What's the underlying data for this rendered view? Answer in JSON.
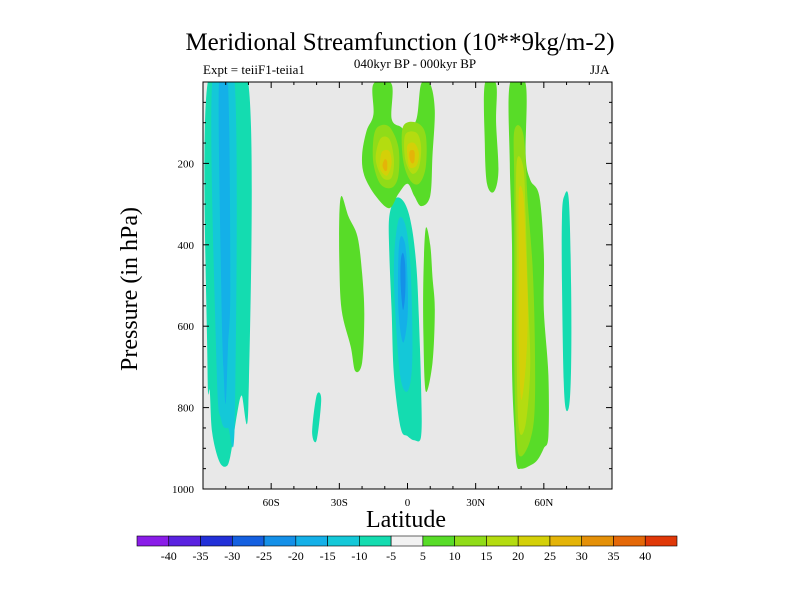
{
  "colors": {
    "background": "#e8e8e8",
    "levels": {
      "-40": "#8a1de8",
      "-35": "#5a22e0",
      "-30": "#2230d8",
      "-25": "#1460e0",
      "-20": "#1490e8",
      "-15": "#14b0e8",
      "-10": "#14c8d8",
      "-5": "#14dcb0",
      "5": "#58dc28",
      "10": "#90dc18",
      "15": "#b4dc10",
      "20": "#d4d008",
      "25": "#e4b408",
      "30": "#e49008",
      "35": "#e46808",
      "40": "#e03808"
    }
  },
  "chart_data": {
    "type": "contour-filled",
    "title": "Meridional Streamfunction (10**9kg/m-2)",
    "left_string": "Expt = teiiF1-teiia1",
    "center_string": "040kyr BP - 000kyr BP",
    "right_string": "JJA",
    "xlabel": "Latitude",
    "ylabel": "Pressure (in hPa)",
    "xlim": [
      -90,
      90
    ],
    "ylim": [
      1000,
      0
    ],
    "x_ticks": [
      {
        "value": -60,
        "label": "60S"
      },
      {
        "value": -30,
        "label": "30S"
      },
      {
        "value": 0,
        "label": "0"
      },
      {
        "value": 30,
        "label": "30N"
      },
      {
        "value": 60,
        "label": "60N"
      }
    ],
    "y_ticks": [
      {
        "value": 200,
        "label": "200"
      },
      {
        "value": 400,
        "label": "400"
      },
      {
        "value": 600,
        "label": "600"
      },
      {
        "value": 800,
        "label": "800"
      },
      {
        "value": 1000,
        "label": "1000"
      }
    ],
    "colorbar": {
      "levels": [
        -40,
        -35,
        -30,
        -25,
        -20,
        -15,
        -10,
        -5,
        5,
        10,
        15,
        20,
        25,
        30,
        35,
        40
      ],
      "labels": [
        "-40",
        "-35",
        "-30",
        "-25",
        "-20",
        "-15",
        "-10",
        "-5",
        "5",
        "10",
        "15",
        "20",
        "25",
        "30",
        "35",
        "40"
      ]
    },
    "features": [
      {
        "name": "southern-negative-band-outer",
        "level": -5,
        "points": [
          [
            -88,
            5
          ],
          [
            -70,
            5
          ],
          [
            -70,
            790
          ],
          [
            -73,
            770
          ],
          [
            -75,
            815
          ],
          [
            -78,
            920
          ],
          [
            -80,
            945
          ],
          [
            -83,
            930
          ],
          [
            -86,
            860
          ],
          [
            -87,
            760
          ],
          [
            -88,
            700
          ]
        ]
      },
      {
        "name": "southern-negative-band-inner",
        "level": -10,
        "points": [
          [
            -86,
            5
          ],
          [
            -76,
            5
          ],
          [
            -76,
            830
          ],
          [
            -79,
            850
          ],
          [
            -82,
            830
          ],
          [
            -84,
            700
          ]
        ]
      },
      {
        "name": "southern-negative-band-core",
        "level": -15,
        "points": [
          [
            -83,
            5
          ],
          [
            -79,
            5
          ],
          [
            -78,
            500
          ],
          [
            -79,
            650
          ],
          [
            -80,
            790
          ],
          [
            -81,
            700
          ],
          [
            -82,
            500
          ]
        ]
      },
      {
        "name": "equatorial-negative-outer",
        "level": -5,
        "points": [
          [
            -5,
            285
          ],
          [
            -1,
            300
          ],
          [
            2,
            360
          ],
          [
            4,
            460
          ],
          [
            5,
            580
          ],
          [
            6,
            750
          ],
          [
            6,
            870
          ],
          [
            3,
            880
          ],
          [
            0,
            870
          ],
          [
            -3,
            850
          ],
          [
            -6,
            720
          ],
          [
            -7,
            560
          ],
          [
            -8,
            420
          ],
          [
            -8,
            330
          ]
        ]
      },
      {
        "name": "equatorial-negative-inner",
        "level": -10,
        "points": [
          [
            -4,
            340
          ],
          [
            -1,
            350
          ],
          [
            1,
            430
          ],
          [
            2,
            560
          ],
          [
            2,
            700
          ],
          [
            0,
            760
          ],
          [
            -3,
            730
          ],
          [
            -5,
            600
          ],
          [
            -6,
            450
          ]
        ]
      },
      {
        "name": "equatorial-negative-core",
        "level": -15,
        "points": [
          [
            -3,
            380
          ],
          [
            -1,
            400
          ],
          [
            0,
            480
          ],
          [
            0,
            580
          ],
          [
            -2,
            640
          ],
          [
            -4,
            560
          ],
          [
            -4,
            430
          ]
        ]
      },
      {
        "name": "equatorial-negative-center",
        "level": -20,
        "points": [
          [
            -2,
            420
          ],
          [
            -1,
            450
          ],
          [
            -1,
            520
          ],
          [
            -2,
            560
          ],
          [
            -3,
            500
          ],
          [
            -3,
            440
          ]
        ]
      },
      {
        "name": "southern-subtropical-positive",
        "level": 5,
        "points": [
          [
            -29,
            280
          ],
          [
            -26,
            330
          ],
          [
            -22,
            380
          ],
          [
            -20,
            470
          ],
          [
            -19,
            570
          ],
          [
            -20,
            690
          ],
          [
            -23,
            710
          ],
          [
            -25,
            650
          ],
          [
            -29,
            560
          ],
          [
            -30,
            440
          ],
          [
            -30,
            330
          ]
        ]
      },
      {
        "name": "northern-subtropical-positive-west",
        "level": 5,
        "points": [
          [
            8,
            360
          ],
          [
            10,
            400
          ],
          [
            11,
            480
          ],
          [
            12,
            560
          ],
          [
            11,
            690
          ],
          [
            8,
            760
          ],
          [
            7,
            620
          ],
          [
            7,
            480
          ]
        ]
      },
      {
        "name": "upper-tropical-positive-outer",
        "level": 5,
        "points": [
          [
            -15,
            5
          ],
          [
            -7,
            5
          ],
          [
            -7,
            90
          ],
          [
            -3,
            110
          ],
          [
            0,
            120
          ],
          [
            4,
            90
          ],
          [
            6,
            5
          ],
          [
            10,
            5
          ],
          [
            12,
            70
          ],
          [
            11,
            180
          ],
          [
            10,
            280
          ],
          [
            6,
            305
          ],
          [
            3,
            280
          ],
          [
            0,
            250
          ],
          [
            -4,
            275
          ],
          [
            -8,
            310
          ],
          [
            -14,
            280
          ],
          [
            -19,
            230
          ],
          [
            -20,
            180
          ],
          [
            -18,
            120
          ],
          [
            -15,
            80
          ]
        ]
      },
      {
        "name": "upper-tropical-positive-10-west",
        "level": 10,
        "points": [
          [
            -13,
            110
          ],
          [
            -8,
            110
          ],
          [
            -4,
            160
          ],
          [
            -4,
            230
          ],
          [
            -7,
            260
          ],
          [
            -12,
            250
          ],
          [
            -15,
            200
          ],
          [
            -15,
            140
          ]
        ]
      },
      {
        "name": "upper-tropical-positive-10-east",
        "level": 10,
        "points": [
          [
            -2,
            110
          ],
          [
            4,
            100
          ],
          [
            8,
            130
          ],
          [
            8,
            210
          ],
          [
            5,
            250
          ],
          [
            1,
            240
          ],
          [
            -2,
            190
          ]
        ]
      },
      {
        "name": "upper-tropical-positive-15-west",
        "level": 15,
        "points": [
          [
            -12,
            140
          ],
          [
            -8,
            140
          ],
          [
            -6,
            190
          ],
          [
            -7,
            235
          ],
          [
            -11,
            235
          ],
          [
            -14,
            190
          ]
        ]
      },
      {
        "name": "upper-tropical-positive-15-east",
        "level": 15,
        "points": [
          [
            -1,
            130
          ],
          [
            4,
            125
          ],
          [
            6,
            160
          ],
          [
            5,
            210
          ],
          [
            2,
            225
          ],
          [
            -1,
            190
          ]
        ]
      },
      {
        "name": "upper-tropical-positive-20-west",
        "level": 20,
        "points": [
          [
            -11,
            170
          ],
          [
            -8,
            170
          ],
          [
            -7,
            200
          ],
          [
            -9,
            230
          ],
          [
            -12,
            215
          ],
          [
            -12,
            190
          ]
        ]
      },
      {
        "name": "upper-tropical-positive-20-east",
        "level": 20,
        "points": [
          [
            0,
            155
          ],
          [
            3,
            150
          ],
          [
            5,
            175
          ],
          [
            4,
            205
          ],
          [
            1,
            210
          ],
          [
            0,
            185
          ]
        ]
      },
      {
        "name": "upper-tropical-positive-25-west",
        "level": 25,
        "points": [
          [
            -10,
            190
          ],
          [
            -9,
            195
          ],
          [
            -9,
            215
          ],
          [
            -10,
            218
          ],
          [
            -11,
            205
          ]
        ]
      },
      {
        "name": "upper-tropical-positive-25-east",
        "level": 25,
        "points": [
          [
            1,
            170
          ],
          [
            3,
            170
          ],
          [
            3,
            195
          ],
          [
            2,
            200
          ],
          [
            1,
            190
          ]
        ]
      },
      {
        "name": "northern-upper-positive",
        "level": 5,
        "points": [
          [
            34,
            5
          ],
          [
            39,
            5
          ],
          [
            39,
            100
          ],
          [
            40,
            220
          ],
          [
            38,
            270
          ],
          [
            35,
            250
          ],
          [
            34,
            150
          ]
        ]
      },
      {
        "name": "northern-midlatitude-positive-outer",
        "level": 5,
        "points": [
          [
            45,
            5
          ],
          [
            52,
            5
          ],
          [
            52,
            180
          ],
          [
            54,
            240
          ],
          [
            58,
            280
          ],
          [
            60,
            420
          ],
          [
            60,
            560
          ],
          [
            62,
            720
          ],
          [
            62,
            870
          ],
          [
            60,
            900
          ],
          [
            57,
            930
          ],
          [
            53,
            945
          ],
          [
            50,
            950
          ],
          [
            48,
            940
          ],
          [
            47,
            850
          ],
          [
            46,
            700
          ],
          [
            46,
            400
          ],
          [
            45,
            200
          ]
        ]
      },
      {
        "name": "northern-midlatitude-positive-10",
        "level": 10,
        "points": [
          [
            47,
            120
          ],
          [
            51,
            130
          ],
          [
            53,
            300
          ],
          [
            55,
            450
          ],
          [
            56,
            620
          ],
          [
            56,
            800
          ],
          [
            54,
            880
          ],
          [
            50,
            920
          ],
          [
            48,
            880
          ],
          [
            47,
            700
          ],
          [
            47,
            450
          ],
          [
            47,
            250
          ]
        ]
      },
      {
        "name": "northern-midlatitude-positive-15",
        "level": 15,
        "points": [
          [
            48,
            200
          ],
          [
            51,
            210
          ],
          [
            52,
            330
          ],
          [
            53,
            520
          ],
          [
            54,
            700
          ],
          [
            52,
            840
          ],
          [
            49,
            850
          ],
          [
            48,
            650
          ],
          [
            48,
            420
          ]
        ]
      },
      {
        "name": "northern-midlatitude-positive-20",
        "level": 20,
        "points": [
          [
            49,
            270
          ],
          [
            51,
            280
          ],
          [
            52,
            400
          ],
          [
            53,
            560
          ],
          [
            52,
            700
          ],
          [
            50,
            780
          ],
          [
            49,
            640
          ],
          [
            49,
            450
          ]
        ]
      },
      {
        "name": "northern-high-latitude-negative",
        "level": -5,
        "points": [
          [
            69,
            280
          ],
          [
            71,
            290
          ],
          [
            72,
            500
          ],
          [
            72,
            700
          ],
          [
            71,
            800
          ],
          [
            69,
            770
          ],
          [
            68,
            500
          ],
          [
            68,
            330
          ]
        ]
      },
      {
        "name": "southern-small-negative",
        "level": -5,
        "points": [
          [
            -40,
            770
          ],
          [
            -38,
            780
          ],
          [
            -40,
            880
          ],
          [
            -42,
            860
          ]
        ]
      }
    ]
  }
}
